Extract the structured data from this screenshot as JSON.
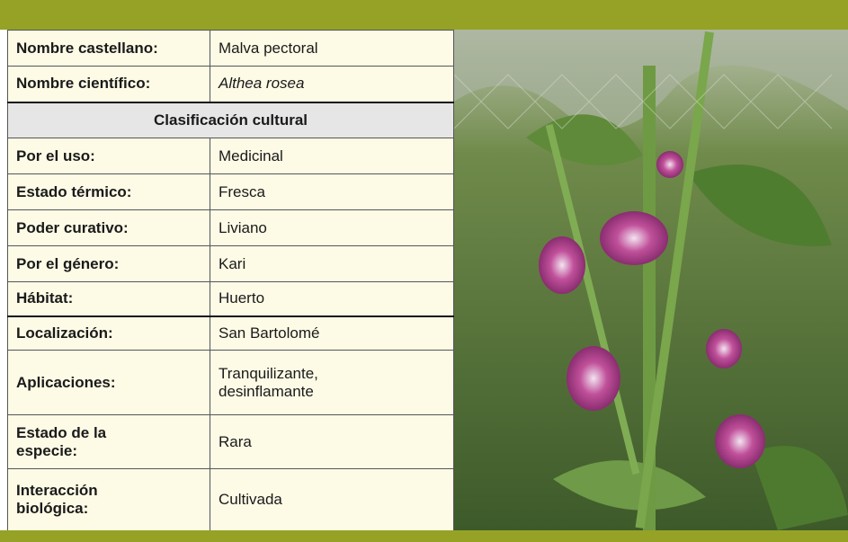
{
  "table": {
    "rows": [
      [
        "Nombre castellano:",
        "Malva pectoral"
      ],
      [
        "Nombre científico:",
        "Althea rosea"
      ],
      [
        "Clasificación cultural"
      ],
      [
        "Por el uso:",
        "Medicinal"
      ],
      [
        "Estado térmico:",
        "Fresca"
      ],
      [
        "Poder curativo:",
        "Liviano"
      ],
      [
        "Por el género:",
        "Kari"
      ],
      [
        "Hábitat:",
        "Huerto"
      ],
      [
        "Localización:",
        "San Bartolomé"
      ],
      [
        "Aplicaciones:",
        "Tranquilizante, desinflamante"
      ],
      [
        "Estado de la especie:",
        "Rara"
      ],
      [
        "Interacción biológica:",
        "Cultivada"
      ]
    ]
  }
}
